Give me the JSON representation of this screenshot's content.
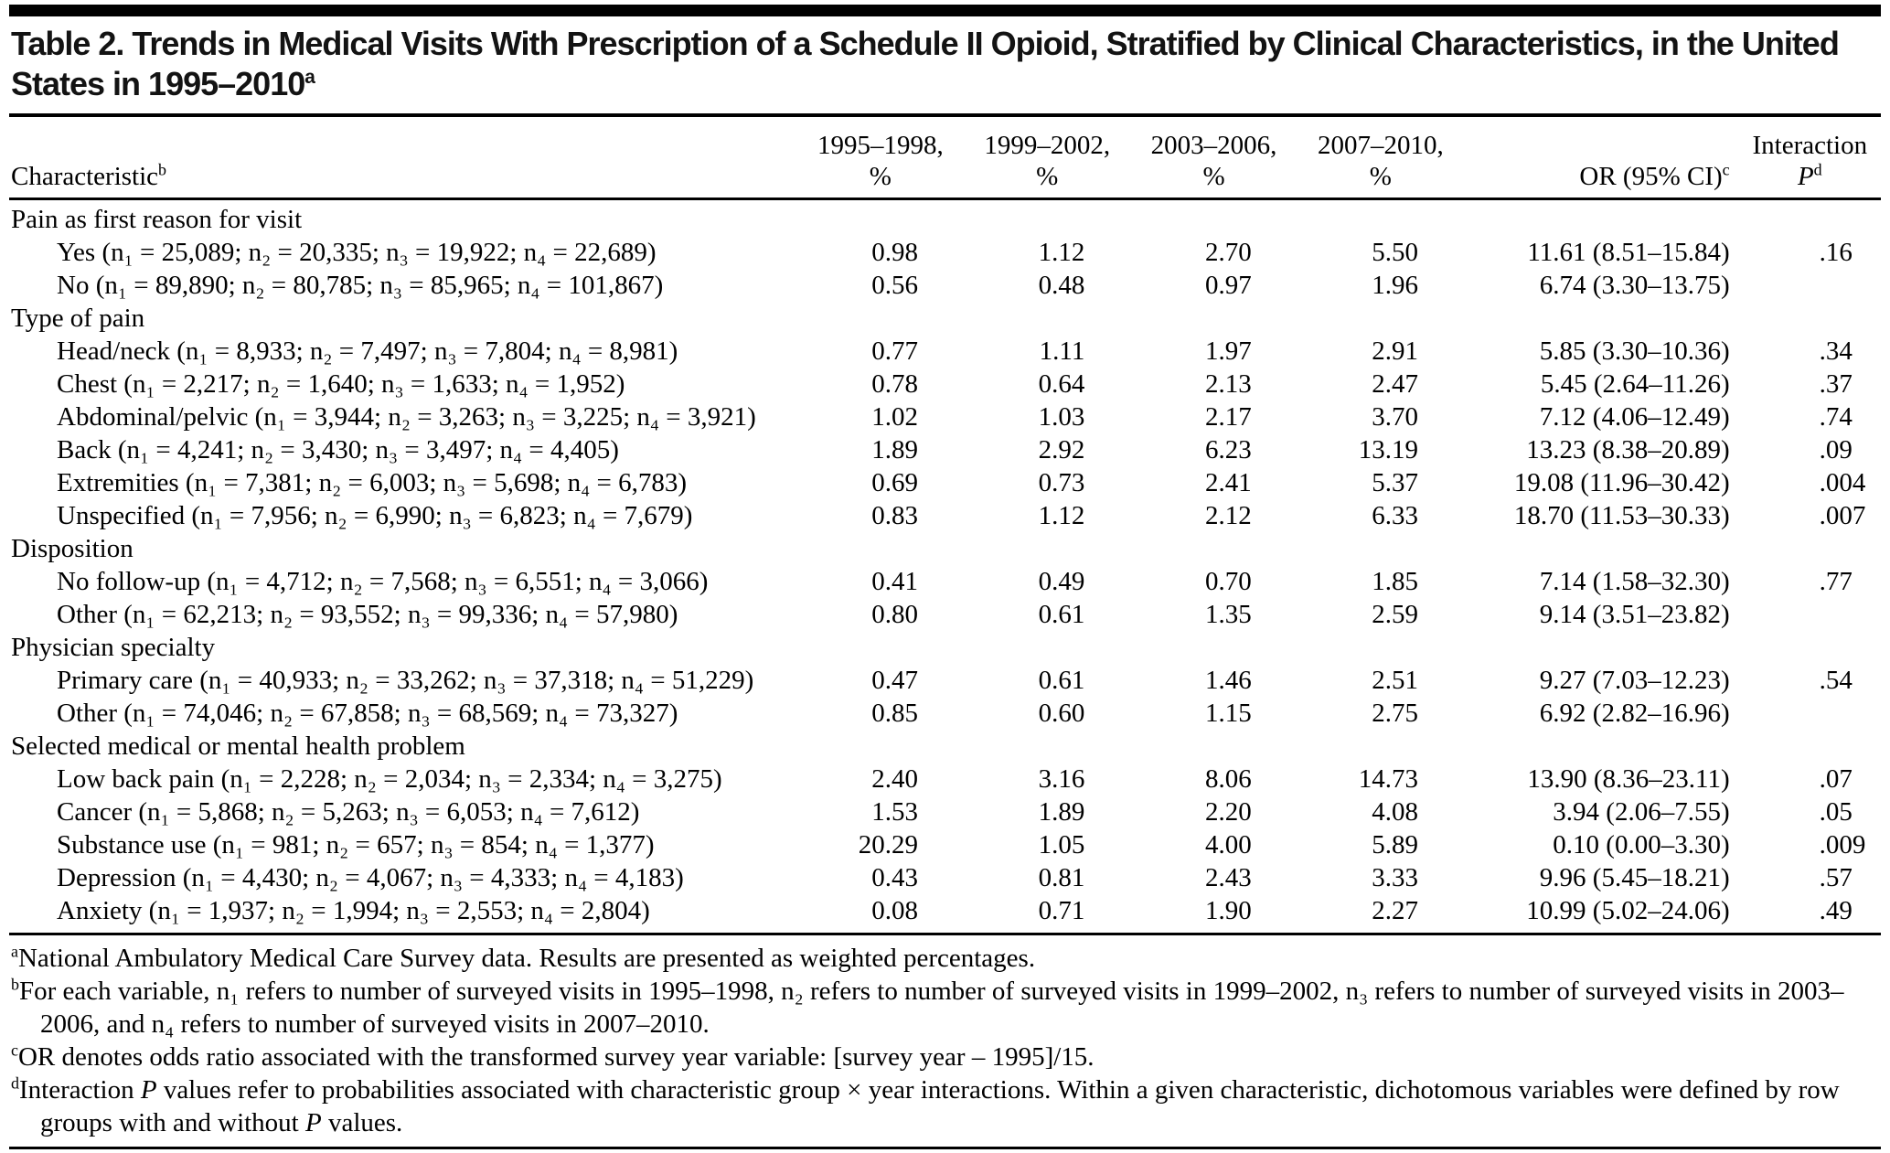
{
  "title": {
    "text": "Table 2. Trends in Medical Visits With Prescription of a Schedule II Opioid, Stratified by Clinical Characteristics, in the United States in 1995–2010",
    "sup": "a"
  },
  "columns": {
    "characteristic": {
      "label": "Characteristic",
      "sup": "b"
    },
    "periods": [
      {
        "line1": "1995–1998,",
        "line2": "%"
      },
      {
        "line1": "1999–2002,",
        "line2": "%"
      },
      {
        "line1": "2003–2006,",
        "line2": "%"
      },
      {
        "line1": "2007–2010,",
        "line2": "%"
      }
    ],
    "or": {
      "label": "OR (95% CI)",
      "sup": "c"
    },
    "interaction": {
      "line1": "Interaction",
      "p": "P",
      "sup": "d"
    }
  },
  "table": {
    "sections": [
      {
        "header": "Pain as first reason for visit",
        "rows": [
          {
            "label": "Yes (n₁ = 25,089; n₂ = 20,335; n₃ = 19,922; n₄ = 22,689)",
            "p1": "0.98",
            "p2": "1.12",
            "p3": "2.70",
            "p4": "5.50",
            "or": "11.61 (8.51–15.84)",
            "interaction_p": ".16"
          },
          {
            "label": "No (n₁ = 89,890; n₂ = 80,785; n₃ = 85,965; n₄ = 101,867)",
            "p1": "0.56",
            "p2": "0.48",
            "p3": "0.97",
            "p4": "1.96",
            "or": "6.74 (3.30–13.75)",
            "interaction_p": ""
          }
        ]
      },
      {
        "header": "Type of pain",
        "rows": [
          {
            "label": "Head/neck (n₁ = 8,933; n₂ = 7,497; n₃ = 7,804; n₄ = 8,981)",
            "p1": "0.77",
            "p2": "1.11",
            "p3": "1.97",
            "p4": "2.91",
            "or": "5.85 (3.30–10.36)",
            "interaction_p": ".34"
          },
          {
            "label": "Chest (n₁ = 2,217; n₂ = 1,640; n₃ = 1,633; n₄ = 1,952)",
            "p1": "0.78",
            "p2": "0.64",
            "p3": "2.13",
            "p4": "2.47",
            "or": "5.45 (2.64–11.26)",
            "interaction_p": ".37"
          },
          {
            "label": "Abdominal/pelvic (n₁ = 3,944; n₂ = 3,263; n₃ = 3,225; n₄ = 3,921)",
            "p1": "1.02",
            "p2": "1.03",
            "p3": "2.17",
            "p4": "3.70",
            "or": "7.12 (4.06–12.49)",
            "interaction_p": ".74"
          },
          {
            "label": "Back (n₁ = 4,241; n₂ = 3,430; n₃ = 3,497; n₄ = 4,405)",
            "p1": "1.89",
            "p2": "2.92",
            "p3": "6.23",
            "p4": "13.19",
            "or": "13.23 (8.38–20.89)",
            "interaction_p": ".09"
          },
          {
            "label": "Extremities (n₁ = 7,381; n₂ = 6,003; n₃ = 5,698; n₄ = 6,783)",
            "p1": "0.69",
            "p2": "0.73",
            "p3": "2.41",
            "p4": "5.37",
            "or": "19.08 (11.96–30.42)",
            "interaction_p": ".004"
          },
          {
            "label": "Unspecified (n₁ = 7,956; n₂ = 6,990; n₃ = 6,823; n₄ = 7,679)",
            "p1": "0.83",
            "p2": "1.12",
            "p3": "2.12",
            "p4": "6.33",
            "or": "18.70 (11.53–30.33)",
            "interaction_p": ".007"
          }
        ]
      },
      {
        "header": "Disposition",
        "rows": [
          {
            "label": "No follow-up (n₁ = 4,712; n₂ = 7,568; n₃ = 6,551; n₄ = 3,066)",
            "p1": "0.41",
            "p2": "0.49",
            "p3": "0.70",
            "p4": "1.85",
            "or": "7.14 (1.58–32.30)",
            "interaction_p": ".77"
          },
          {
            "label": "Other (n₁ = 62,213; n₂ = 93,552; n₃ = 99,336; n₄ = 57,980)",
            "p1": "0.80",
            "p2": "0.61",
            "p3": "1.35",
            "p4": "2.59",
            "or": "9.14 (3.51–23.82)",
            "interaction_p": ""
          }
        ]
      },
      {
        "header": "Physician specialty",
        "rows": [
          {
            "label": "Primary care (n₁ = 40,933; n₂ = 33,262; n₃ = 37,318; n₄ = 51,229)",
            "p1": "0.47",
            "p2": "0.61",
            "p3": "1.46",
            "p4": "2.51",
            "or": "9.27 (7.03–12.23)",
            "interaction_p": ".54"
          },
          {
            "label": "Other (n₁ = 74,046; n₂ = 67,858; n₃ = 68,569; n₄ = 73,327)",
            "p1": "0.85",
            "p2": "0.60",
            "p3": "1.15",
            "p4": "2.75",
            "or": "6.92 (2.82–16.96)",
            "interaction_p": ""
          }
        ]
      },
      {
        "header": "Selected medical or mental health problem",
        "rows": [
          {
            "label": "Low back pain (n₁ = 2,228; n₂ = 2,034; n₃ = 2,334; n₄ = 3,275)",
            "p1": "2.40",
            "p2": "3.16",
            "p3": "8.06",
            "p4": "14.73",
            "or": "13.90 (8.36–23.11)",
            "interaction_p": ".07"
          },
          {
            "label": "Cancer (n₁ = 5,868; n₂ = 5,263; n₃ = 6,053; n₄ = 7,612)",
            "p1": "1.53",
            "p2": "1.89",
            "p3": "2.20",
            "p4": "4.08",
            "or": "3.94 (2.06–7.55)",
            "interaction_p": ".05"
          },
          {
            "label": "Substance use (n₁ = 981; n₂ = 657; n₃ = 854; n₄ = 1,377)",
            "p1": "20.29",
            "p2": "1.05",
            "p3": "4.00",
            "p4": "5.89",
            "or": "0.10 (0.00–3.30)",
            "interaction_p": ".009"
          },
          {
            "label": "Depression (n₁ = 4,430; n₂ = 4,067; n₃ = 4,333; n₄ = 4,183)",
            "p1": "0.43",
            "p2": "0.81",
            "p3": "2.43",
            "p4": "3.33",
            "or": "9.96 (5.45–18.21)",
            "interaction_p": ".57"
          },
          {
            "label": "Anxiety (n₁ = 1,937; n₂ = 1,994; n₃ = 2,553; n₄ = 2,804)",
            "p1": "0.08",
            "p2": "0.71",
            "p3": "1.90",
            "p4": "2.27",
            "or": "10.99 (5.02–24.06)",
            "interaction_p": ".49"
          }
        ]
      }
    ]
  },
  "footnotes": [
    {
      "marker": "a",
      "parts": [
        {
          "t": "National Ambulatory Medical Care Survey data. Results are presented as weighted percentages."
        }
      ]
    },
    {
      "marker": "b",
      "parts": [
        {
          "t": "For each variable, n₁ refers to number of surveyed visits in 1995–1998, n₂ refers to number of surveyed visits in 1999–2002, n₃ refers to number of surveyed visits in 2003–2006, and n₄ refers to number of surveyed visits in 2007–2010."
        }
      ]
    },
    {
      "marker": "c",
      "parts": [
        {
          "t": "OR denotes odds ratio associated with the transformed survey year variable: [survey year – 1995]/15."
        }
      ]
    },
    {
      "marker": "d",
      "parts": [
        {
          "t": "Interaction "
        },
        {
          "t": "P",
          "i": true
        },
        {
          "t": " values refer to probabilities associated with characteristic group × year interactions. Within a given characteristic, dichotomous variables were defined by row groups with and without "
        },
        {
          "t": "P",
          "i": true
        },
        {
          "t": " values."
        }
      ]
    }
  ]
}
